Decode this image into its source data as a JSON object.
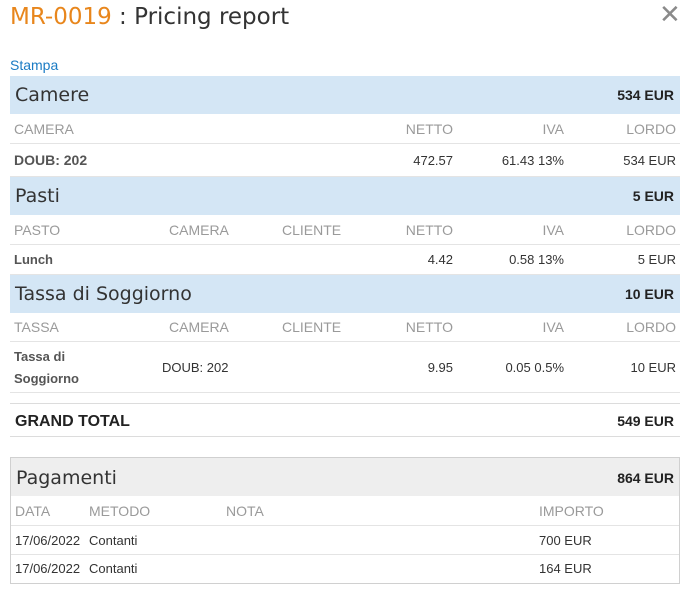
{
  "header": {
    "code": "MR-0019",
    "separator": " : ",
    "title": "Pricing report",
    "close_glyph": "✕"
  },
  "print_link": "Stampa",
  "camere": {
    "name": "Camere",
    "total": "534 EUR",
    "columns": {
      "camera": "CAMERA",
      "netto": "NETTO",
      "iva": "IVA",
      "lordo": "LORDO"
    },
    "rows": [
      {
        "camera": "DOUB: 202",
        "netto": "472.57",
        "iva": "61.43 13%",
        "lordo": "534 EUR"
      }
    ]
  },
  "pasti": {
    "name": "Pasti",
    "total": "5 EUR",
    "columns": {
      "pasto": "PASTO",
      "camera": "CAMERA",
      "cliente": "CLIENTE",
      "netto": "NETTO",
      "iva": "IVA",
      "lordo": "LORDO"
    },
    "rows": [
      {
        "pasto": "Lunch",
        "camera": "",
        "cliente": "",
        "netto": "4.42",
        "iva": "0.58 13%",
        "lordo": "5 EUR"
      }
    ]
  },
  "tassa": {
    "name": "Tassa di Soggiorno",
    "total": "10 EUR",
    "columns": {
      "tassa": "TASSA",
      "camera": "CAMERA",
      "cliente": "CLIENTE",
      "netto": "NETTO",
      "iva": "IVA",
      "lordo": "LORDO"
    },
    "rows": [
      {
        "tassa_line1": "Tassa di",
        "tassa_line2": "Soggiorno",
        "camera": "DOUB: 202",
        "cliente": "",
        "netto": "9.95",
        "iva": "0.05 0.5%",
        "lordo": "10 EUR"
      }
    ]
  },
  "grand_total": {
    "label": "GRAND TOTAL",
    "value": "549 EUR"
  },
  "pagamenti": {
    "name": "Pagamenti",
    "total": "864 EUR",
    "columns": {
      "data": "DATA",
      "metodo": "METODO",
      "nota": "NOTA",
      "importo": "IMPORTO"
    },
    "rows": [
      {
        "data": "17/06/2022",
        "metodo": "Contanti",
        "nota": "",
        "importo": "700 EUR"
      },
      {
        "data": "17/06/2022",
        "metodo": "Contanti",
        "nota": "",
        "importo": "164 EUR"
      }
    ]
  },
  "colors": {
    "accent": "#e8861c",
    "link": "#1a7bc4",
    "section_bg": "#d4e6f5",
    "payments_bg": "#eeeeee"
  }
}
